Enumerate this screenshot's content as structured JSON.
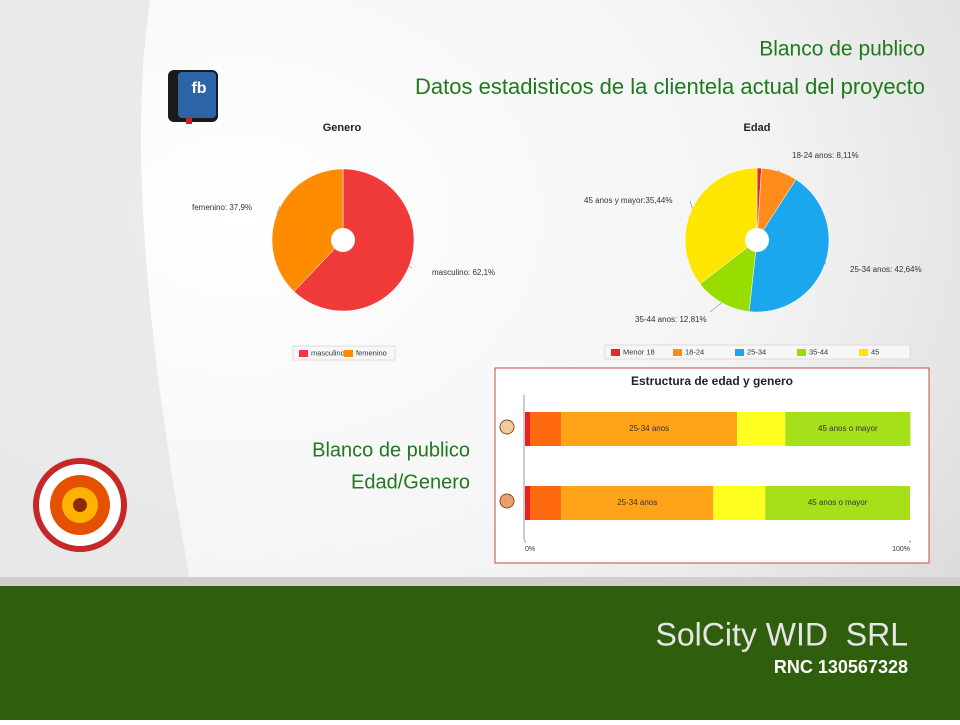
{
  "header": {
    "title": "Blanco de publico",
    "subtitle": "Datos estadisticos de la clientela actual del proyecto",
    "fb_icon": "fb"
  },
  "section": {
    "title": "Blanco de publico",
    "subtitle": "Edad/Genero"
  },
  "footer": {
    "company": "SolCity WID  SRL",
    "rnc": "RNC 130567328"
  },
  "chart_data": [
    {
      "type": "pie",
      "title": "Genero",
      "categories": [
        "masculino",
        "femenino"
      ],
      "values": [
        62.1,
        37.9
      ],
      "value_labels": [
        "masculino: 62,1%",
        "femenino: 37,9%"
      ],
      "colors": [
        "#f03a3a",
        "#ff8c00"
      ],
      "legend": "bottom"
    },
    {
      "type": "pie",
      "title": "Edad",
      "categories": [
        "Menor 18",
        "18-24",
        "25-34",
        "35-44",
        "45"
      ],
      "values": [
        1.0,
        8.11,
        42.64,
        12.81,
        35.44
      ],
      "value_labels": [
        null,
        "18-24 anos: 8,11%",
        "25-34 anos: 42,64%",
        "35-44 anos: 12,81%",
        "45 anos y mayor:35,44%"
      ],
      "colors": [
        "#e8262a",
        "#ff8c1a",
        "#1aa7ee",
        "#99dd00",
        "#ffe600"
      ],
      "legend": "bottom"
    },
    {
      "type": "stacked-bar",
      "title": "Estructura de edad y genero",
      "categories": [
        null,
        null
      ],
      "series": [
        {
          "color": "#e82020",
          "values": [
            1.3,
            1.3
          ]
        },
        {
          "color": "#ff6a10",
          "values": [
            8.1,
            8.1
          ]
        },
        {
          "color": "#ffa318",
          "values": [
            45.7,
            39.5
          ],
          "labels": [
            "25-34 anos",
            "25-34 anos"
          ]
        },
        {
          "color": "#ffff20",
          "values": [
            12.5,
            13.5
          ]
        },
        {
          "color": "#a6e01a",
          "values": [
            32.5,
            37.6
          ],
          "labels": [
            "45 anos o mayor",
            "45 anos o mayor"
          ]
        }
      ],
      "xlim": [
        0,
        100
      ],
      "xticks": [
        {
          "value": 0,
          "label": "0%"
        },
        {
          "value": 100,
          "label": "100%"
        }
      ]
    }
  ]
}
